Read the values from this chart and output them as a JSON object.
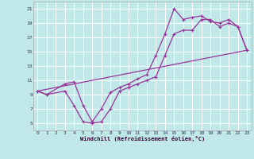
{
  "xlabel": "Windchill (Refroidissement éolien,°C)",
  "bg_color": "#c0e8e8",
  "line_color": "#993399",
  "grid_color": "#ffffff",
  "xlim": [
    -0.5,
    23.5
  ],
  "ylim": [
    4,
    22
  ],
  "xticks": [
    0,
    1,
    2,
    3,
    4,
    5,
    6,
    7,
    8,
    9,
    10,
    11,
    12,
    13,
    14,
    15,
    16,
    17,
    18,
    19,
    20,
    21,
    22,
    23
  ],
  "yticks": [
    5,
    7,
    9,
    11,
    13,
    15,
    17,
    19,
    21
  ],
  "curve1_x": [
    0,
    1,
    3,
    4,
    5,
    6,
    7,
    8,
    9,
    10,
    11,
    12,
    13,
    14,
    15,
    16,
    17,
    18,
    19,
    20,
    21,
    22,
    23
  ],
  "curve1_y": [
    9.5,
    9.0,
    9.5,
    7.5,
    5.2,
    5.0,
    5.2,
    7.0,
    9.5,
    10.0,
    10.5,
    11.0,
    11.5,
    14.5,
    17.5,
    18.0,
    18.0,
    19.5,
    19.5,
    18.5,
    19.0,
    18.5,
    15.2
  ],
  "curve2_x": [
    0,
    1,
    3,
    4,
    5,
    6,
    7,
    8,
    9,
    10,
    11,
    12,
    13,
    14,
    15,
    16,
    17,
    18,
    19,
    20,
    21,
    22,
    23
  ],
  "curve2_y": [
    9.5,
    9.0,
    10.5,
    10.8,
    7.5,
    5.2,
    7.0,
    9.3,
    10.0,
    10.5,
    11.2,
    11.8,
    14.5,
    17.5,
    21.0,
    19.5,
    19.8,
    20.0,
    19.2,
    19.0,
    19.5,
    18.5,
    15.2
  ],
  "line_x": [
    0,
    23
  ],
  "line_y": [
    9.5,
    15.2
  ]
}
